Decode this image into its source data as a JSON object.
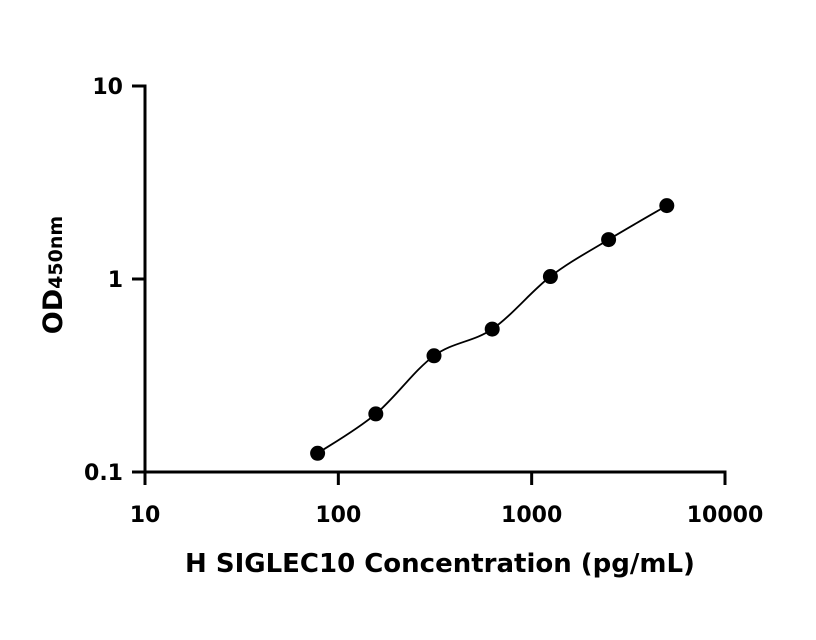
{
  "chart_data": {
    "type": "scatter",
    "title": "",
    "xlabel": "H SIGLEC10 Concentration (pg/mL)",
    "ylabel_main": "OD",
    "ylabel_sub": "450nm",
    "x_scale": "log",
    "y_scale": "log",
    "xlim": [
      10,
      10000
    ],
    "ylim": [
      0.1,
      10
    ],
    "x_ticks": [
      10,
      100,
      1000,
      10000
    ],
    "x_tick_labels": [
      "10",
      "100",
      "1000",
      "10000"
    ],
    "y_ticks": [
      0.1,
      1,
      10
    ],
    "y_tick_labels": [
      "0.1",
      "1",
      "10"
    ],
    "grid": false,
    "series": [
      {
        "x": [
          78.125,
          156.25,
          312.5,
          625,
          1250,
          2500,
          5000
        ],
        "y": [
          0.125,
          0.2,
          0.4,
          0.55,
          1.03,
          1.6,
          2.4
        ]
      }
    ],
    "marker_color": "#000000",
    "line_color": "#000000"
  }
}
